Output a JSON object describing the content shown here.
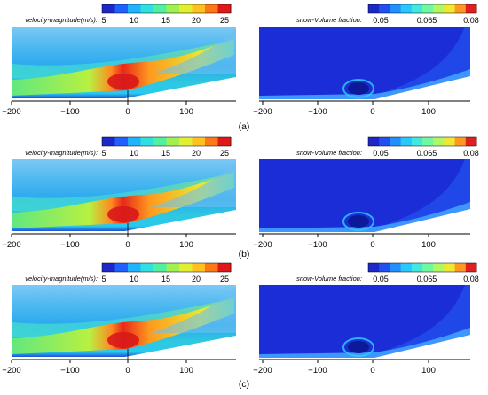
{
  "figure": {
    "rows": [
      {
        "label": "(a)",
        "velocity": {
          "legend_title": "velocity-magnitude(m/s):",
          "legend_ticks": [
            "5",
            "10",
            "15",
            "20",
            "25"
          ],
          "x_ticks": [
            "−200",
            "−100",
            "0",
            "100"
          ]
        },
        "snow": {
          "legend_title": "snow-Volume fraction:",
          "legend_ticks": [
            "0.05",
            "0.065",
            "0.08"
          ],
          "x_ticks": [
            "−200",
            "−100",
            "0",
            "100"
          ]
        }
      },
      {
        "label": "(b)",
        "velocity": {
          "legend_title": "velocity-magnitude(m/s):",
          "legend_ticks": [
            "5",
            "10",
            "15",
            "20",
            "25"
          ],
          "x_ticks": [
            "−200",
            "−100",
            "0",
            "100"
          ]
        },
        "snow": {
          "legend_title": "snow-Volume fraction:",
          "legend_ticks": [
            "0.05",
            "0.065",
            "0.08"
          ],
          "x_ticks": [
            "−200",
            "−100",
            "0",
            "100"
          ]
        }
      },
      {
        "label": "(c)",
        "velocity": {
          "legend_title": "velocity-magnitude(m/s):",
          "legend_ticks": [
            "5",
            "10",
            "15",
            "20",
            "25"
          ],
          "x_ticks": [
            "−200",
            "−100",
            "0",
            "100"
          ]
        },
        "snow": {
          "legend_title": "snow-Volume fraction:",
          "legend_ticks": [
            "0.05",
            "0.065",
            "0.08"
          ],
          "x_ticks": [
            "−200",
            "−100",
            "0",
            "100"
          ]
        }
      }
    ]
  },
  "colors": {
    "velocity_scale": [
      "#1e28c8",
      "#2060ff",
      "#20b4ff",
      "#30e0e0",
      "#50f0a0",
      "#a0f050",
      "#e0f030",
      "#ffc020",
      "#ff7818",
      "#e01818"
    ],
    "snow_scale": [
      "#1e28c8",
      "#2050f0",
      "#2090ff",
      "#28c8ff",
      "#40e8e0",
      "#70f8a0",
      "#b0f860",
      "#f0e830",
      "#ff9820",
      "#e02020"
    ],
    "domain_blue": "#1a2dd6"
  }
}
